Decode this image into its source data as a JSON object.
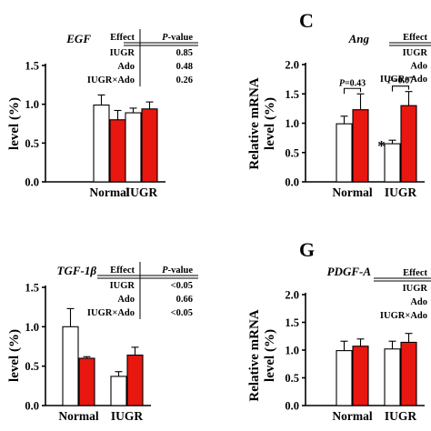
{
  "chart_data": [
    {
      "type": "bar",
      "gene": "EGF",
      "panel_letter": "",
      "ylabel_lines": [
        "level (%)"
      ],
      "ylim": [
        0,
        1.5
      ],
      "yticks": [
        "0.0",
        "0.5",
        "1.0",
        "1.5"
      ],
      "categories": [
        "Normal",
        "IUGR"
      ],
      "series": [
        {
          "name": "",
          "color": "#ffffff",
          "values": [
            0.99,
            0.89
          ],
          "errors": [
            0.13,
            0.06
          ]
        },
        {
          "name": "",
          "color": "#e8170f",
          "values": [
            0.8,
            0.94
          ],
          "errors": [
            0.12,
            0.09
          ]
        }
      ],
      "stats_table": {
        "headers": [
          "Effect",
          "P-value"
        ],
        "rows": [
          [
            "IUGR",
            "0.85"
          ],
          [
            "Ado",
            "0.48"
          ],
          [
            "IUGR×Ado",
            "0.26"
          ]
        ]
      },
      "annotations": []
    },
    {
      "type": "bar",
      "gene": "Ang",
      "panel_letter": "C",
      "ylabel_lines": [
        "Relative mRNA",
        "level (%)"
      ],
      "ylim": [
        0,
        2.0
      ],
      "yticks": [
        "0.0",
        "0.5",
        "1.0",
        "1.5",
        "2.0"
      ],
      "categories": [
        "Normal",
        "IUGR"
      ],
      "series": [
        {
          "name": "",
          "color": "#ffffff",
          "values": [
            0.99,
            0.65
          ],
          "errors": [
            0.13,
            0.06
          ]
        },
        {
          "name": "",
          "color": "#e8170f",
          "values": [
            1.23,
            1.3
          ],
          "errors": [
            0.27,
            0.24
          ]
        }
      ],
      "stats_table": {
        "headers": [
          "Effect"
        ],
        "rows": [
          [
            "IUGR"
          ],
          [
            "Ado"
          ],
          [
            "IUGR×Ado"
          ]
        ]
      },
      "annotations": [
        "P=0.43",
        "P=0.07",
        "*"
      ]
    },
    {
      "type": "bar",
      "gene": "TGF-1β",
      "panel_letter": "",
      "ylabel_lines": [
        "level (%)"
      ],
      "ylim": [
        0,
        1.5
      ],
      "yticks": [
        "0.0",
        "0.5",
        "1.0",
        "1.5"
      ],
      "categories": [
        "Normal",
        "IUGR"
      ],
      "series": [
        {
          "name": "",
          "color": "#ffffff",
          "values": [
            1.0,
            0.37
          ],
          "errors": [
            0.23,
            0.06
          ]
        },
        {
          "name": "",
          "color": "#e8170f",
          "values": [
            0.6,
            0.64
          ],
          "errors": [
            0.02,
            0.1
          ]
        }
      ],
      "stats_table": {
        "headers": [
          "Effect",
          "P-value"
        ],
        "rows": [
          [
            "IUGR",
            "<0.05"
          ],
          [
            "Ado",
            "0.66"
          ],
          [
            "IUGR×Ado",
            "<0.05"
          ]
        ]
      },
      "annotations": []
    },
    {
      "type": "bar",
      "gene": "PDGF-A",
      "panel_letter": "G",
      "ylabel_lines": [
        "Relative mRNA",
        "level (%)"
      ],
      "ylim": [
        0,
        2.0
      ],
      "yticks": [
        "0.0",
        "0.5",
        "1.0",
        "1.5",
        "2.0"
      ],
      "categories": [
        "Normal",
        "IUGR"
      ],
      "series": [
        {
          "name": "",
          "color": "#ffffff",
          "values": [
            0.99,
            1.02
          ],
          "errors": [
            0.17,
            0.14
          ]
        },
        {
          "name": "",
          "color": "#e8170f",
          "values": [
            1.07,
            1.14
          ],
          "errors": [
            0.13,
            0.16
          ]
        }
      ],
      "stats_table": {
        "headers": [
          "Effect"
        ],
        "rows": [
          [
            "IUGR"
          ],
          [
            "Ado"
          ],
          [
            "IUGR×Ado"
          ]
        ]
      },
      "annotations": []
    }
  ]
}
